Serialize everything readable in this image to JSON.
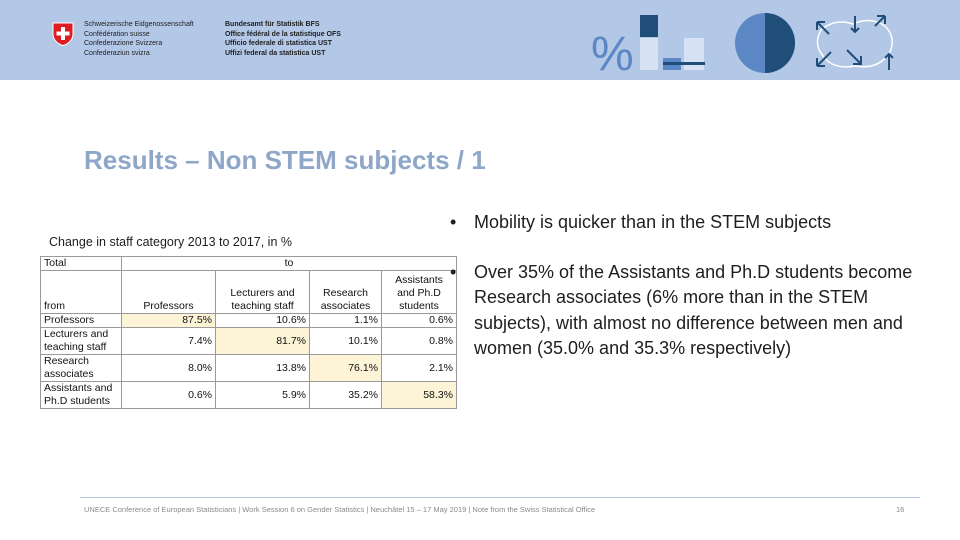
{
  "header": {
    "org_names": [
      "Schweizerische Eidgenossenschaft",
      "Confédération suisse",
      "Confederazione Svizzera",
      "Confederaziun svizra"
    ],
    "office_names": [
      "Bundesamt für Statistik BFS",
      "Office fédéral de la statistique OFS",
      "Ufficio federale di statistica UST",
      "Uffizi federal da statistica UST"
    ],
    "percent_symbol": "%",
    "colors": {
      "band": "#b3c7e6",
      "dark_blue": "#1f4e79",
      "mid_blue": "#5b87c5",
      "light_blue": "#d6e2f3"
    }
  },
  "slide": {
    "title": "Results – Non STEM subjects / 1",
    "caption": "Change in staff category 2013 to 2017, in %"
  },
  "table": {
    "corner_top": "Total",
    "to_label": "to",
    "from_label": "from",
    "column_headers": [
      "Professors",
      "Lecturers and teaching staff",
      "Research associates",
      "Assistants and Ph.D students"
    ],
    "rows": [
      {
        "label": "Professors",
        "values": [
          "87.5%",
          "10.6%",
          "1.1%",
          "0.6%"
        ],
        "highlight": 0
      },
      {
        "label": "Lecturers and teaching staff",
        "values": [
          "7.4%",
          "81.7%",
          "10.1%",
          "0.8%"
        ],
        "highlight": 1
      },
      {
        "label": "Research associates",
        "values": [
          "8.0%",
          "13.8%",
          "76.1%",
          "2.1%"
        ],
        "highlight": 2
      },
      {
        "label": "Assistants and Ph.D students",
        "values": [
          "0.6%",
          "5.9%",
          "35.2%",
          "58.3%"
        ],
        "highlight": 3
      }
    ],
    "highlight_color": "#fdf3d6"
  },
  "bullets": [
    "Mobility is quicker than in the STEM subjects",
    "Over 35% of the Assistants and Ph.D students become Research associates (6% more than in the STEM subjects), with almost no difference between men and women (35.0% and 35.3% respectively)"
  ],
  "footer": {
    "text": "UNECE Conference of European Statisticians | Work Session 6 on Gender Statistics | Neuchâtel 15 – 17 May 2019 | Note from the Swiss Statistical Office",
    "page_number": "16"
  }
}
